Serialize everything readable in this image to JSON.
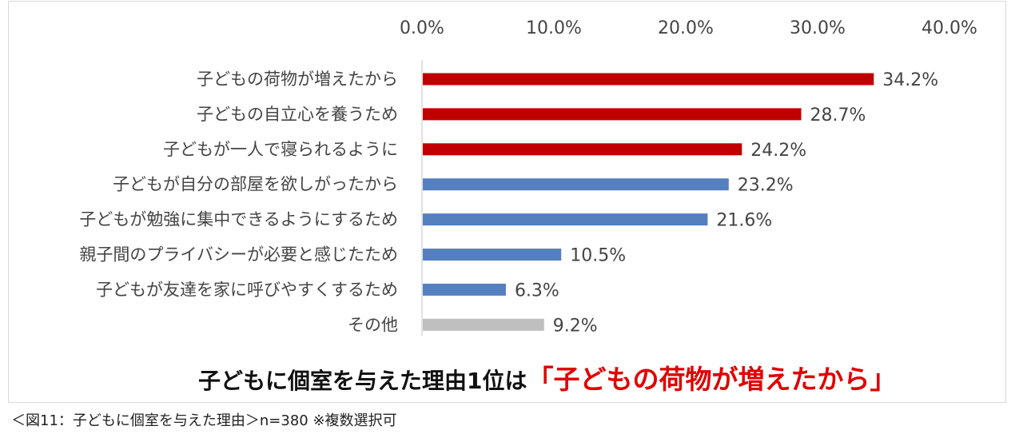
{
  "chart_data": {
    "type": "bar",
    "orientation": "horizontal",
    "categories": [
      "子どもの荷物が増えたから",
      "子どもの自立心を養うため",
      "子どもが一人で寝られるように",
      "子どもが自分の部屋を欲しがったから",
      "子どもが勉強に集中できるようにするため",
      "親子間のプライバシーが必要と感じたため",
      "子どもが友達を家に呼びやすくするため",
      "その他"
    ],
    "values": [
      34.2,
      28.7,
      24.2,
      23.2,
      21.6,
      10.5,
      6.3,
      9.2
    ],
    "value_labels": [
      "34.2%",
      "28.7%",
      "24.2%",
      "23.2%",
      "21.6%",
      "10.5%",
      "6.3%",
      "9.2%"
    ],
    "bar_colors": [
      "#c00000",
      "#c00000",
      "#c00000",
      "#5580bf",
      "#5580bf",
      "#5580bf",
      "#5580bf",
      "#bfbfbf"
    ],
    "xlim": [
      0,
      40
    ],
    "ticks": [
      0,
      10,
      20,
      30,
      40
    ],
    "tick_labels": [
      "0.0%",
      "10.0%",
      "20.0%",
      "30.0%",
      "40.0%"
    ],
    "axis_position": "top",
    "grid": false
  },
  "headline": {
    "text": "子どもに個室を与えた理由1位は",
    "highlight": "「子どもの荷物が増えたから」"
  },
  "caption": "＜図11：子どもに個室を与えた理由＞n=380 ※複数選択可"
}
